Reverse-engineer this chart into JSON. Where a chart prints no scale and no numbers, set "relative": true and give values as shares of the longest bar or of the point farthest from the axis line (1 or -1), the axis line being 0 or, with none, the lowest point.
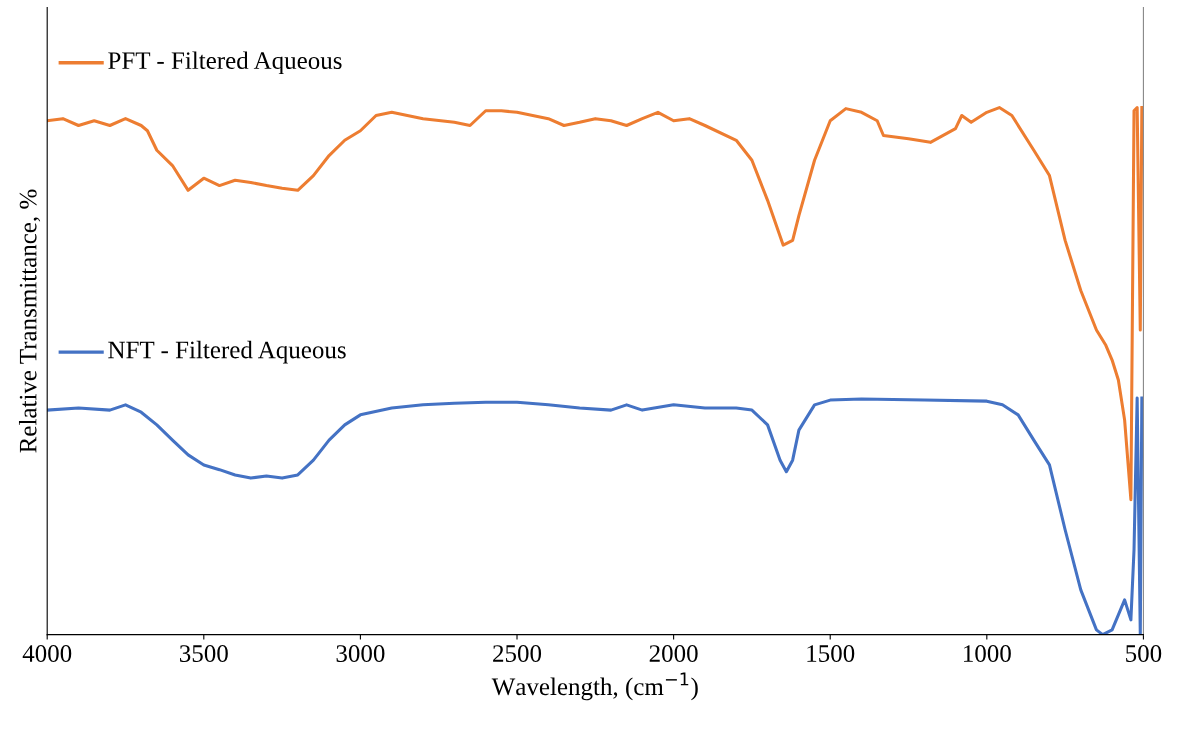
{
  "chart_data": {
    "type": "line",
    "xlabel": "Wavelength, (cm$^{−1}$)",
    "ylabel": "Relative Transmittance, %",
    "relative": true,
    "xlim": [
      4000,
      500
    ],
    "xticks": [
      4000,
      3500,
      3000,
      2500,
      2000,
      1500,
      1000,
      500
    ],
    "grid": false,
    "legend": "left",
    "marker": "none",
    "line_style": "solid",
    "series": [
      {
        "name": "PFT - Filtered Aqueous",
        "color": "#ed7d31",
        "x": [
          4000,
          3950,
          3900,
          3850,
          3800,
          3750,
          3700,
          3680,
          3650,
          3600,
          3550,
          3500,
          3450,
          3400,
          3350,
          3300,
          3250,
          3200,
          3150,
          3100,
          3050,
          3000,
          2950,
          2900,
          2850,
          2800,
          2700,
          2650,
          2600,
          2550,
          2500,
          2400,
          2350,
          2300,
          2250,
          2200,
          2150,
          2100,
          2050,
          2000,
          1950,
          1900,
          1800,
          1750,
          1700,
          1650,
          1620,
          1600,
          1550,
          1500,
          1450,
          1400,
          1350,
          1330,
          1250,
          1180,
          1100,
          1080,
          1050,
          1000,
          960,
          920,
          850,
          800,
          750,
          700,
          650,
          620,
          600,
          580,
          560,
          540,
          530,
          520,
          510,
          505
        ],
        "values": [
          0.975,
          0.979,
          0.966,
          0.975,
          0.966,
          0.979,
          0.966,
          0.956,
          0.919,
          0.89,
          0.843,
          0.866,
          0.852,
          0.862,
          0.858,
          0.852,
          0.847,
          0.843,
          0.871,
          0.909,
          0.938,
          0.956,
          0.985,
          0.991,
          0.985,
          0.979,
          0.972,
          0.966,
          0.994,
          0.994,
          0.991,
          0.979,
          0.966,
          0.972,
          0.979,
          0.975,
          0.966,
          0.979,
          0.991,
          0.975,
          0.979,
          0.966,
          0.938,
          0.9,
          0.824,
          0.739,
          0.748,
          0.795,
          0.9,
          0.975,
          0.998,
          0.991,
          0.975,
          0.947,
          0.941,
          0.934,
          0.96,
          0.985,
          0.972,
          0.991,
          1.0,
          0.985,
          0.919,
          0.871,
          0.748,
          0.653,
          0.578,
          0.549,
          0.521,
          0.483,
          0.407,
          0.256,
          0.994,
          1.0,
          0.578,
          1.0
        ]
      },
      {
        "name": "NFT - Filtered Aqueous",
        "color": "#4472c4",
        "x": [
          4000,
          3900,
          3800,
          3750,
          3700,
          3650,
          3600,
          3550,
          3500,
          3450,
          3400,
          3350,
          3300,
          3250,
          3200,
          3150,
          3100,
          3050,
          3000,
          2900,
          2800,
          2700,
          2600,
          2500,
          2400,
          2300,
          2200,
          2150,
          2100,
          2000,
          1900,
          1800,
          1750,
          1700,
          1660,
          1640,
          1620,
          1600,
          1550,
          1500,
          1400,
          1200,
          1000,
          950,
          900,
          850,
          800,
          750,
          700,
          650,
          630,
          600,
          560,
          540,
          530,
          520,
          510,
          505
        ],
        "values": [
          0.426,
          0.43,
          0.426,
          0.436,
          0.422,
          0.398,
          0.369,
          0.341,
          0.322,
          0.313,
          0.303,
          0.297,
          0.301,
          0.297,
          0.303,
          0.331,
          0.369,
          0.398,
          0.417,
          0.43,
          0.436,
          0.439,
          0.441,
          0.441,
          0.436,
          0.43,
          0.426,
          0.436,
          0.426,
          0.436,
          0.43,
          0.43,
          0.426,
          0.398,
          0.331,
          0.309,
          0.331,
          0.388,
          0.436,
          0.445,
          0.447,
          0.445,
          0.443,
          0.436,
          0.417,
          0.369,
          0.322,
          0.199,
          0.085,
          0.009,
          0.0,
          0.009,
          0.066,
          0.028,
          0.161,
          0.449,
          0.0,
          0.449
        ]
      }
    ]
  }
}
